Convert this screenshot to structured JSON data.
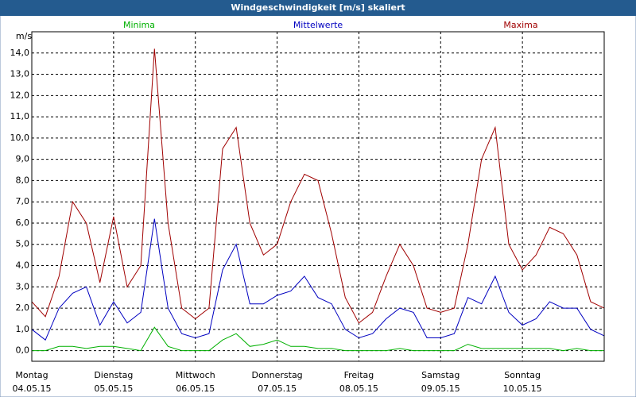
{
  "chart_data": {
    "type": "line",
    "title": "Windgeschwindigkeit [m/s] skaliert",
    "y_label": "m/s",
    "x": [
      0,
      4,
      8,
      12,
      16,
      20,
      24,
      28,
      32,
      36,
      40,
      44,
      48,
      52,
      56,
      60,
      64,
      68,
      72,
      76,
      80,
      84,
      88,
      92,
      96,
      100,
      104,
      108,
      112,
      116,
      120,
      124,
      128,
      132,
      136,
      140,
      144,
      148,
      152,
      156,
      160,
      164,
      168
    ],
    "xlim": [
      0,
      168
    ],
    "xticks": [
      {
        "value": 0,
        "label": "Montag",
        "date": "04.05.15"
      },
      {
        "value": 24,
        "label": "Dienstag",
        "date": "05.05.15"
      },
      {
        "value": 48,
        "label": "Mittwoch",
        "date": "06.05.15"
      },
      {
        "value": 72,
        "label": "Donnerstag",
        "date": "07.05.15"
      },
      {
        "value": 96,
        "label": "Freitag",
        "date": "08.05.15"
      },
      {
        "value": 120,
        "label": "Samstag",
        "date": "09.05.15"
      },
      {
        "value": 144,
        "label": "Sonntag",
        "date": "10.05.15"
      }
    ],
    "ylim": [
      -0.5,
      15.0
    ],
    "yticks": [
      {
        "value": 0,
        "label": "0,0"
      },
      {
        "value": 1,
        "label": "1,0"
      },
      {
        "value": 2,
        "label": "2,0"
      },
      {
        "value": 3,
        "label": "3,0"
      },
      {
        "value": 4,
        "label": "4,0"
      },
      {
        "value": 5,
        "label": "5,0"
      },
      {
        "value": 6,
        "label": "6,0"
      },
      {
        "value": 7,
        "label": "7,0"
      },
      {
        "value": 8,
        "label": "8,0"
      },
      {
        "value": 9,
        "label": "9,0"
      },
      {
        "value": 10,
        "label": "10,0"
      },
      {
        "value": 11,
        "label": "11,0"
      },
      {
        "value": 12,
        "label": "12,0"
      },
      {
        "value": 13,
        "label": "13,0"
      },
      {
        "value": 14,
        "label": "14,0"
      }
    ],
    "grid": true,
    "series": [
      {
        "name": "Minima",
        "color": "#00b000",
        "values": [
          0,
          0,
          0.2,
          0.2,
          0.1,
          0.2,
          0.2,
          0.1,
          0,
          1.1,
          0.2,
          0,
          0,
          0,
          0.5,
          0.8,
          0.2,
          0.3,
          0.5,
          0.2,
          0.2,
          0.1,
          0.1,
          0,
          0,
          0,
          0,
          0.1,
          0,
          0,
          0,
          0,
          0.3,
          0.1,
          0.1,
          0.1,
          0.1,
          0.1,
          0.1,
          0,
          0.1,
          0,
          0
        ]
      },
      {
        "name": "Mittelwerte",
        "color": "#0000c0",
        "values": [
          1.0,
          0.5,
          2.0,
          2.7,
          3.0,
          1.2,
          2.3,
          1.3,
          1.8,
          6.2,
          2.0,
          0.8,
          0.6,
          0.8,
          3.8,
          5.0,
          2.2,
          2.2,
          2.6,
          2.8,
          3.5,
          2.5,
          2.2,
          1.0,
          0.6,
          0.8,
          1.5,
          2.0,
          1.8,
          0.6,
          0.6,
          0.8,
          2.5,
          2.2,
          3.5,
          1.8,
          1.2,
          1.5,
          2.3,
          2.0,
          2.0,
          1.0,
          0.7
        ]
      },
      {
        "name": "Maxima",
        "color": "#a00000",
        "values": [
          2.3,
          1.6,
          3.5,
          7.0,
          6.0,
          3.2,
          6.3,
          3.0,
          4.0,
          14.2,
          6.0,
          2.0,
          1.5,
          2.0,
          9.5,
          10.5,
          6.0,
          4.5,
          5.0,
          7.0,
          8.3,
          8.0,
          5.5,
          2.5,
          1.3,
          1.8,
          3.5,
          5.0,
          4.0,
          2.0,
          1.8,
          2.0,
          5.0,
          9.0,
          10.5,
          5.0,
          3.8,
          4.5,
          5.8,
          5.5,
          4.5,
          2.3,
          2.0
        ]
      }
    ]
  }
}
